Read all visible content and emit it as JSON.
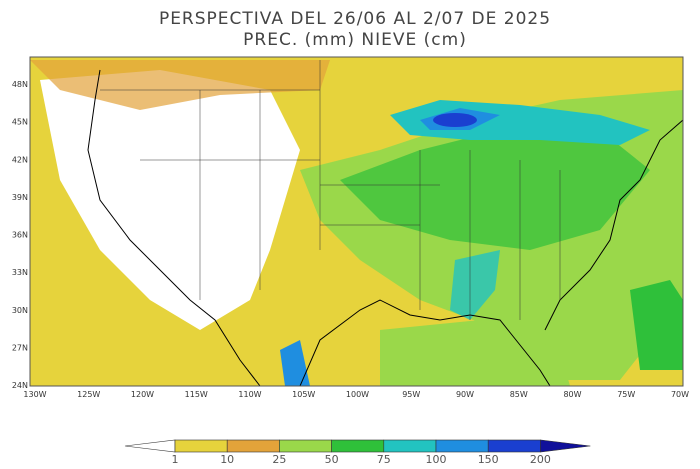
{
  "header": {
    "title": "PERSPECTIVA DEL 26/06 AL 2/07 DE 2025",
    "subtitle": "PREC. (mm) NIEVE (cm)"
  },
  "map": {
    "lat_labels": [
      "48N",
      "45N",
      "42N",
      "39N",
      "36N",
      "33N",
      "30N",
      "27N",
      "24N"
    ],
    "lon_labels": [
      "130W",
      "125W",
      "120W",
      "115W",
      "110W",
      "105W",
      "100W",
      "95W",
      "90W",
      "85W",
      "80W",
      "75W",
      "70W"
    ]
  },
  "legend": {
    "ticks": [
      1,
      10,
      25,
      50,
      75,
      100,
      150,
      200
    ],
    "colors": [
      "#ffffff",
      "#e6d33c",
      "#e3a33a",
      "#9ad84a",
      "#2fc03a",
      "#22c3c0",
      "#1f8ee0",
      "#1a3fd0",
      "#10109a"
    ]
  }
}
